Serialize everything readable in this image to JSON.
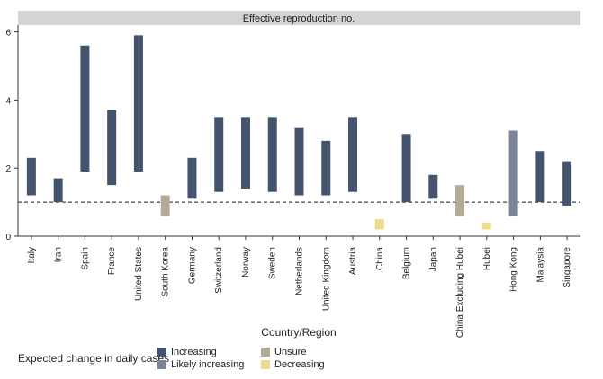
{
  "chart_data": {
    "type": "bar",
    "subtype": "floating-range",
    "title": "Effective reproduction no.",
    "xlabel": "Country/Region",
    "ylabel": "",
    "ylim": [
      0,
      6.2
    ],
    "yticks": [
      0,
      2,
      4,
      6
    ],
    "reference_line": 1,
    "grid": false,
    "legend_position": "bottom-left",
    "categories": [
      "Italy",
      "Iran",
      "Spain",
      "France",
      "United States",
      "South Korea",
      "Germany",
      "Switzerland",
      "Norway",
      "Sweden",
      "Netherlands",
      "United Kingdom",
      "Austria",
      "China",
      "Belgium",
      "Japan",
      "China Excluding Hubei",
      "Hubei",
      "Hong Kong",
      "Malaysia",
      "Singapore"
    ],
    "ranges": [
      [
        1.2,
        2.3
      ],
      [
        1.0,
        1.7
      ],
      [
        1.9,
        5.6
      ],
      [
        1.5,
        3.7
      ],
      [
        1.9,
        5.9
      ],
      [
        0.6,
        1.2
      ],
      [
        1.1,
        2.3
      ],
      [
        1.3,
        3.5
      ],
      [
        1.4,
        3.5
      ],
      [
        1.3,
        3.5
      ],
      [
        1.2,
        3.2
      ],
      [
        1.2,
        2.8
      ],
      [
        1.3,
        3.5
      ],
      [
        0.2,
        0.5
      ],
      [
        1.0,
        3.0
      ],
      [
        1.1,
        1.8
      ],
      [
        0.6,
        1.5
      ],
      [
        0.2,
        0.4
      ],
      [
        0.6,
        3.1
      ],
      [
        1.0,
        2.5
      ],
      [
        0.9,
        2.2
      ]
    ],
    "status": [
      "Increasing",
      "Increasing",
      "Increasing",
      "Increasing",
      "Increasing",
      "Unsure",
      "Increasing",
      "Increasing",
      "Increasing",
      "Increasing",
      "Increasing",
      "Increasing",
      "Increasing",
      "Decreasing",
      "Increasing",
      "Increasing",
      "Unsure",
      "Decreasing",
      "Likely increasing",
      "Increasing",
      "Increasing"
    ],
    "legend": {
      "title": "Expected change in daily cases",
      "entries": [
        {
          "label": "Increasing",
          "color": "#44546f"
        },
        {
          "label": "Likely increasing",
          "color": "#7c8498"
        },
        {
          "label": "Unsure",
          "color": "#b3ab98"
        },
        {
          "label": "Decreasing",
          "color": "#ecdc8c"
        }
      ]
    }
  }
}
